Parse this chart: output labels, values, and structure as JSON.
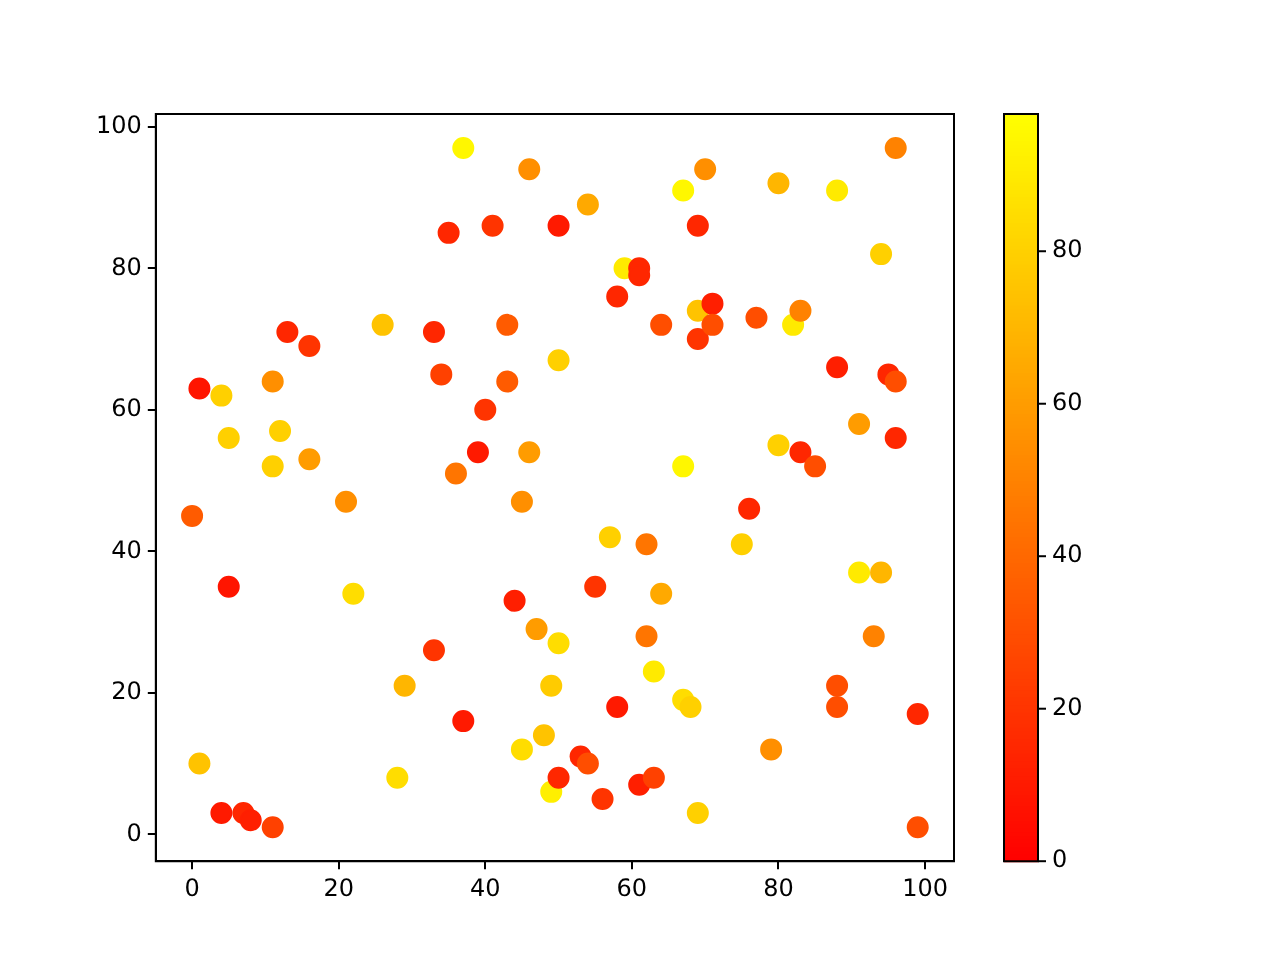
{
  "chart_data": {
    "type": "scatter",
    "marker": "circle",
    "grid": false,
    "legend": false,
    "xlim": [
      -4.95,
      103.95
    ],
    "ylim": [
      -3.8,
      101.8
    ],
    "xticks": [
      0,
      20,
      40,
      60,
      80,
      100
    ],
    "yticks": [
      0,
      20,
      40,
      60,
      80,
      100
    ],
    "clim": [
      0,
      98
    ],
    "cticks": [
      0,
      20,
      40,
      60,
      80
    ],
    "x": [
      1,
      4,
      5,
      5,
      4,
      7,
      8,
      11,
      1,
      0,
      11,
      12,
      11,
      13,
      16,
      16,
      21,
      22,
      26,
      29,
      28,
      33,
      34,
      33,
      35,
      37,
      36,
      37,
      39,
      40,
      41,
      43,
      43,
      44,
      45,
      45,
      46,
      46,
      47,
      48,
      49,
      49,
      50,
      50,
      50,
      50,
      54,
      53,
      54,
      56,
      57,
      58,
      58,
      55,
      59,
      61,
      61,
      61,
      62,
      62,
      63,
      63,
      64,
      64,
      67,
      67,
      67,
      68,
      69,
      69,
      69,
      69,
      70,
      71,
      71,
      75,
      76,
      77,
      79,
      80,
      80,
      82,
      83,
      83,
      85,
      88,
      88,
      88,
      88,
      91,
      91,
      93,
      94,
      94,
      95,
      96,
      96,
      96,
      99,
      99
    ],
    "values": [
      63,
      62,
      56,
      35,
      3,
      3,
      2,
      1,
      10,
      45,
      64,
      57,
      52,
      71,
      69,
      53,
      47,
      34,
      72,
      21,
      8,
      71,
      65,
      26,
      85,
      97,
      51,
      16,
      54,
      60,
      86,
      72,
      64,
      33,
      12,
      47,
      94,
      54,
      29,
      14,
      6,
      21,
      8,
      27,
      67,
      86,
      89,
      11,
      10,
      5,
      42,
      76,
      18,
      35,
      80,
      80,
      79,
      7,
      41,
      28,
      8,
      23,
      72,
      34,
      91,
      52,
      19,
      18,
      74,
      86,
      70,
      3,
      94,
      75,
      72,
      41,
      46,
      73,
      12,
      92,
      55,
      72,
      74,
      54,
      52,
      91,
      66,
      21,
      18,
      58,
      37,
      28,
      82,
      37,
      65,
      64,
      56,
      97,
      17,
      1
    ],
    "cvalues": [
      8,
      80,
      80,
      8,
      10,
      15,
      12,
      25,
      75,
      35,
      55,
      80,
      80,
      15,
      20,
      60,
      55,
      85,
      75,
      70,
      85,
      15,
      25,
      20,
      15,
      95,
      45,
      10,
      10,
      20,
      20,
      35,
      35,
      12,
      85,
      55,
      55,
      60,
      60,
      75,
      92,
      78,
      15,
      85,
      80,
      10,
      65,
      15,
      30,
      20,
      80,
      15,
      10,
      20,
      90,
      15,
      15,
      12,
      45,
      45,
      25,
      90,
      30,
      65,
      95,
      95,
      85,
      80,
      75,
      15,
      20,
      80,
      55,
      12,
      30,
      80,
      15,
      30,
      55,
      70,
      80,
      90,
      50,
      15,
      30,
      90,
      12,
      30,
      30,
      60,
      90,
      50,
      80,
      70,
      15,
      30,
      15,
      50,
      15,
      30
    ]
  }
}
